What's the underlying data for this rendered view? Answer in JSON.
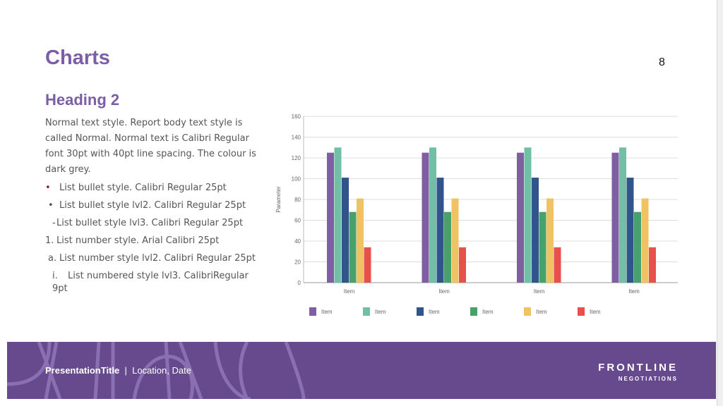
{
  "slide": {
    "title": "Charts",
    "page_number": "8",
    "heading": "Heading 2",
    "body": "Normal text style. Report body text style is called Normal. Normal text is Calibri Regular font 30pt with 40pt line spacing. The colour is dark grey.",
    "list": [
      {
        "marker": "•",
        "text": "List bullet style. Calibri Regular 25pt"
      },
      {
        "marker": "•",
        "text": "List bullet style lvl2. Calibri Regular 25pt"
      },
      {
        "marker": "-",
        "text": "List bullet style lvl3. Calibri Regular 25pt"
      },
      {
        "marker": "1.",
        "text": "List number style. Arial Calibri 25pt"
      },
      {
        "marker": "a.",
        "text": "List number style lvl2. Calibri Regular 25pt"
      },
      {
        "marker": "i.",
        "text": "List  numbered style lvl3. CalibriRegular 9pt"
      }
    ]
  },
  "footer": {
    "title": "PresentationTitle",
    "separator": "|",
    "location": "Location, Date",
    "logo_line1": "FRONTLINE",
    "logo_line2": "NEGOTIATIONS",
    "brand_color": "#674a8d"
  },
  "chart_data": {
    "type": "bar",
    "title": "",
    "xlabel": "",
    "ylabel": "Parameter",
    "ylim": [
      0,
      160
    ],
    "yticks": [
      0,
      20,
      40,
      60,
      80,
      100,
      120,
      140,
      160
    ],
    "grid": true,
    "legend": "bottom",
    "categories": [
      "Item",
      "Item",
      "Item",
      "Item"
    ],
    "series": [
      {
        "name": "Item",
        "color": "#7e5fa4",
        "values": [
          125,
          125,
          125,
          125
        ]
      },
      {
        "name": "Item",
        "color": "#72bfa8",
        "values": [
          130,
          130,
          130,
          130
        ]
      },
      {
        "name": "Item",
        "color": "#30558a",
        "values": [
          101,
          101,
          101,
          101
        ]
      },
      {
        "name": "Item",
        "color": "#48a16a",
        "values": [
          68,
          68,
          68,
          68
        ]
      },
      {
        "name": "Item",
        "color": "#efc363",
        "values": [
          81,
          81,
          81,
          81
        ]
      },
      {
        "name": "Item",
        "color": "#e8514b",
        "values": [
          34,
          34,
          34,
          34
        ]
      }
    ]
  }
}
